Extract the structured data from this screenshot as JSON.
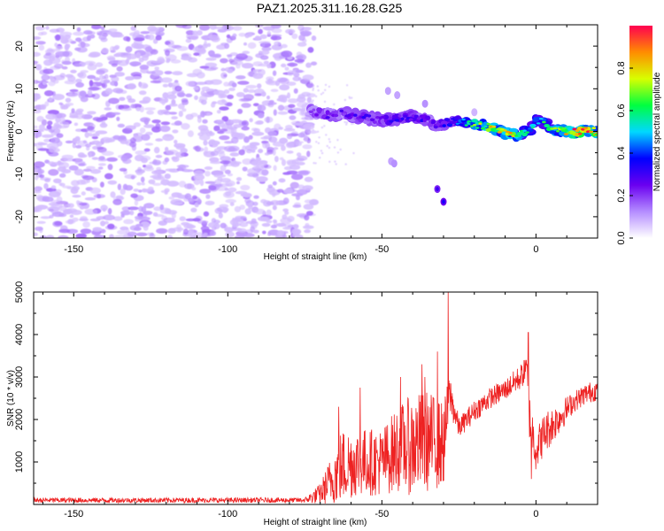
{
  "title": "PAZ1.2025.311.16.28.G25",
  "chart_data": [
    {
      "type": "heatmap",
      "name": "spectrogram",
      "xlabel": "Height of straight line (km)",
      "ylabel": "Frequency (Hz)",
      "xlim": [
        -163,
        20
      ],
      "ylim": [
        -25,
        25
      ],
      "xticks": [
        -150,
        -100,
        -50,
        0
      ],
      "yticks": [
        20,
        10,
        0,
        -10,
        -20
      ],
      "colorbar": {
        "label": "Normalized spectral amplitude",
        "range": [
          0,
          1
        ],
        "ticks": [
          0.0,
          0.2,
          0.4,
          0.6,
          0.8
        ],
        "colors": [
          "#ffffff",
          "#b48cff",
          "#6a00f0",
          "#0000ff",
          "#00d8ff",
          "#00ff40",
          "#d8ff00",
          "#ff8c00",
          "#ff0050"
        ]
      },
      "noise_region": {
        "x_from": -163,
        "x_to": -73,
        "freq_from": -25,
        "freq_to": 25,
        "typical_amplitude": 0.08
      },
      "ridge": [
        {
          "x": -73,
          "f": 4.5,
          "a": 0.22
        },
        {
          "x": -67,
          "f": 4.0,
          "a": 0.25
        },
        {
          "x": -62,
          "f": 4.2,
          "a": 0.25
        },
        {
          "x": -58,
          "f": 3.5,
          "a": 0.28
        },
        {
          "x": -53,
          "f": 3.0,
          "a": 0.27
        },
        {
          "x": -48,
          "f": 2.5,
          "a": 0.3
        },
        {
          "x": -44,
          "f": 3.2,
          "a": 0.28
        },
        {
          "x": -40,
          "f": 3.5,
          "a": 0.3
        },
        {
          "x": -36,
          "f": 3.0,
          "a": 0.3
        },
        {
          "x": -33,
          "f": 1.5,
          "a": 0.28
        },
        {
          "x": -30,
          "f": 2.0,
          "a": 0.32
        },
        {
          "x": -26,
          "f": 2.5,
          "a": 0.45
        },
        {
          "x": -22,
          "f": 2.0,
          "a": 0.55
        },
        {
          "x": -18,
          "f": 1.5,
          "a": 0.7
        },
        {
          "x": -14,
          "f": 0.8,
          "a": 0.75
        },
        {
          "x": -10,
          "f": -0.3,
          "a": 0.8
        },
        {
          "x": -6,
          "f": -0.8,
          "a": 0.72
        },
        {
          "x": -2,
          "f": 0.5,
          "a": 0.55
        },
        {
          "x": 0,
          "f": 2.5,
          "a": 0.5
        },
        {
          "x": 2,
          "f": 2.5,
          "a": 0.55
        },
        {
          "x": 5,
          "f": 0.5,
          "a": 0.65
        },
        {
          "x": 9,
          "f": 0.0,
          "a": 0.8
        },
        {
          "x": 13,
          "f": 0.0,
          "a": 0.95
        },
        {
          "x": 17,
          "f": 0.0,
          "a": 0.9
        },
        {
          "x": 20,
          "f": 0.0,
          "a": 0.85
        }
      ],
      "side_features": [
        {
          "x": -48,
          "f": 9.5,
          "a": 0.1
        },
        {
          "x": -45,
          "f": 8.5,
          "a": 0.1
        },
        {
          "x": -36,
          "f": 6.5,
          "a": 0.12
        },
        {
          "x": -20,
          "f": 4.5,
          "a": 0.08
        },
        {
          "x": -47,
          "f": -7.0,
          "a": 0.1
        },
        {
          "x": -46,
          "f": -7.5,
          "a": 0.12
        },
        {
          "x": -32,
          "f": -13.5,
          "a": 0.22
        },
        {
          "x": -30,
          "f": -16.5,
          "a": 0.25
        }
      ]
    },
    {
      "type": "line",
      "name": "snr",
      "xlabel": "Height of straight line (km)",
      "ylabel": "SNR (10 * v/v)",
      "xlim": [
        -163,
        20
      ],
      "ylim": [
        0,
        5000
      ],
      "xticks": [
        -150,
        -100,
        -50,
        0
      ],
      "yticks": [
        1000,
        2000,
        3000,
        4000,
        5000
      ],
      "series": [
        {
          "name": "SNR",
          "color": "#ee2222",
          "envelope": [
            {
              "x": -163,
              "mean": 100,
              "amp": 60
            },
            {
              "x": -75,
              "mean": 100,
              "amp": 60
            },
            {
              "x": -70,
              "mean": 250,
              "amp": 250
            },
            {
              "x": -63,
              "mean": 900,
              "amp": 900
            },
            {
              "x": -58,
              "mean": 1000,
              "amp": 800
            },
            {
              "x": -50,
              "mean": 1000,
              "amp": 800
            },
            {
              "x": -45,
              "mean": 1300,
              "amp": 1000
            },
            {
              "x": -40,
              "mean": 1400,
              "amp": 1200
            },
            {
              "x": -35,
              "mean": 1500,
              "amp": 1200
            },
            {
              "x": -30,
              "mean": 1400,
              "amp": 1000
            },
            {
              "x": -28,
              "mean": 2600,
              "amp": 500
            },
            {
              "x": -25,
              "mean": 1800,
              "amp": 250
            },
            {
              "x": -20,
              "mean": 2200,
              "amp": 250
            },
            {
              "x": -15,
              "mean": 2500,
              "amp": 250
            },
            {
              "x": -10,
              "mean": 2700,
              "amp": 250
            },
            {
              "x": -5,
              "mean": 3000,
              "amp": 300
            },
            {
              "x": -3,
              "mean": 3200,
              "amp": 300
            },
            {
              "x": -2,
              "mean": 2000,
              "amp": 600
            },
            {
              "x": 0,
              "mean": 1300,
              "amp": 500
            },
            {
              "x": 3,
              "mean": 1700,
              "amp": 500
            },
            {
              "x": 7,
              "mean": 2000,
              "amp": 400
            },
            {
              "x": 12,
              "mean": 2400,
              "amp": 250
            },
            {
              "x": 16,
              "mean": 2600,
              "amp": 250
            },
            {
              "x": 20,
              "mean": 2700,
              "amp": 250
            }
          ],
          "spikes": [
            {
              "x": -28.5,
              "y": 5000
            },
            {
              "x": -32,
              "y": 3600
            },
            {
              "x": -36,
              "y": 3000
            },
            {
              "x": -37,
              "y": 3300
            },
            {
              "x": -44,
              "y": 3000
            },
            {
              "x": -57,
              "y": 2750
            },
            {
              "x": -64,
              "y": 2300
            },
            {
              "x": -2.5,
              "y": 4050
            },
            {
              "x": -3.5,
              "y": 3400
            },
            {
              "x": -1.5,
              "y": 600
            }
          ]
        }
      ]
    }
  ]
}
